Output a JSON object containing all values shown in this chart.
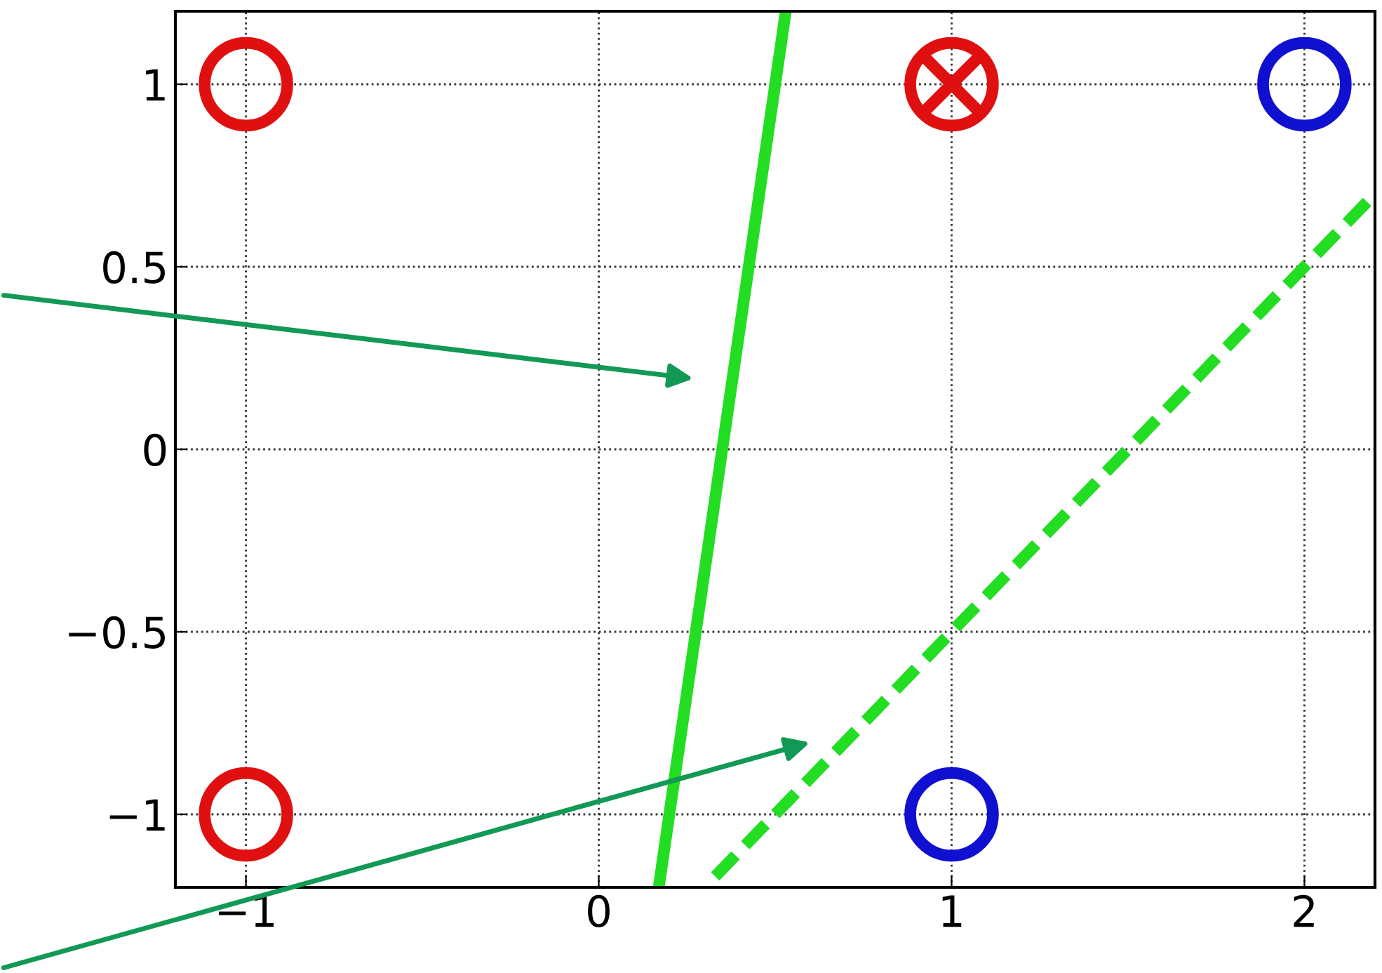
{
  "chart_data": {
    "type": "scatter",
    "xlim": [
      -1.2,
      2.2
    ],
    "ylim": [
      -1.2,
      1.2
    ],
    "xticks": [
      {
        "value": -1,
        "label": "−1"
      },
      0,
      1,
      2
    ],
    "yticks": [
      {
        "value": -1,
        "label": "−1"
      },
      {
        "value": -0.5,
        "label": "−0.5"
      },
      0,
      0.5,
      1
    ],
    "grid": true,
    "series": [
      {
        "marker": "circle",
        "color": "#e01010",
        "x": [
          -1,
          1,
          -1
        ],
        "values": [
          1,
          1,
          -1
        ]
      },
      {
        "marker": "circle",
        "color": "#1010d0",
        "x": [
          2,
          1
        ],
        "values": [
          1,
          -1
        ]
      },
      {
        "marker": "cross",
        "color": "#e01010",
        "x": [
          1
        ],
        "values": [
          1
        ]
      },
      {
        "type": "line",
        "line_style": "solid",
        "color": "#22dd22",
        "x": [
          0.17,
          0.53
        ],
        "values": [
          -1.2,
          1.2
        ]
      },
      {
        "type": "line",
        "line_style": "dashed",
        "color": "#22dd22",
        "x": [
          0.33,
          2.2
        ],
        "values": [
          -1.17,
          0.7
        ]
      }
    ]
  }
}
